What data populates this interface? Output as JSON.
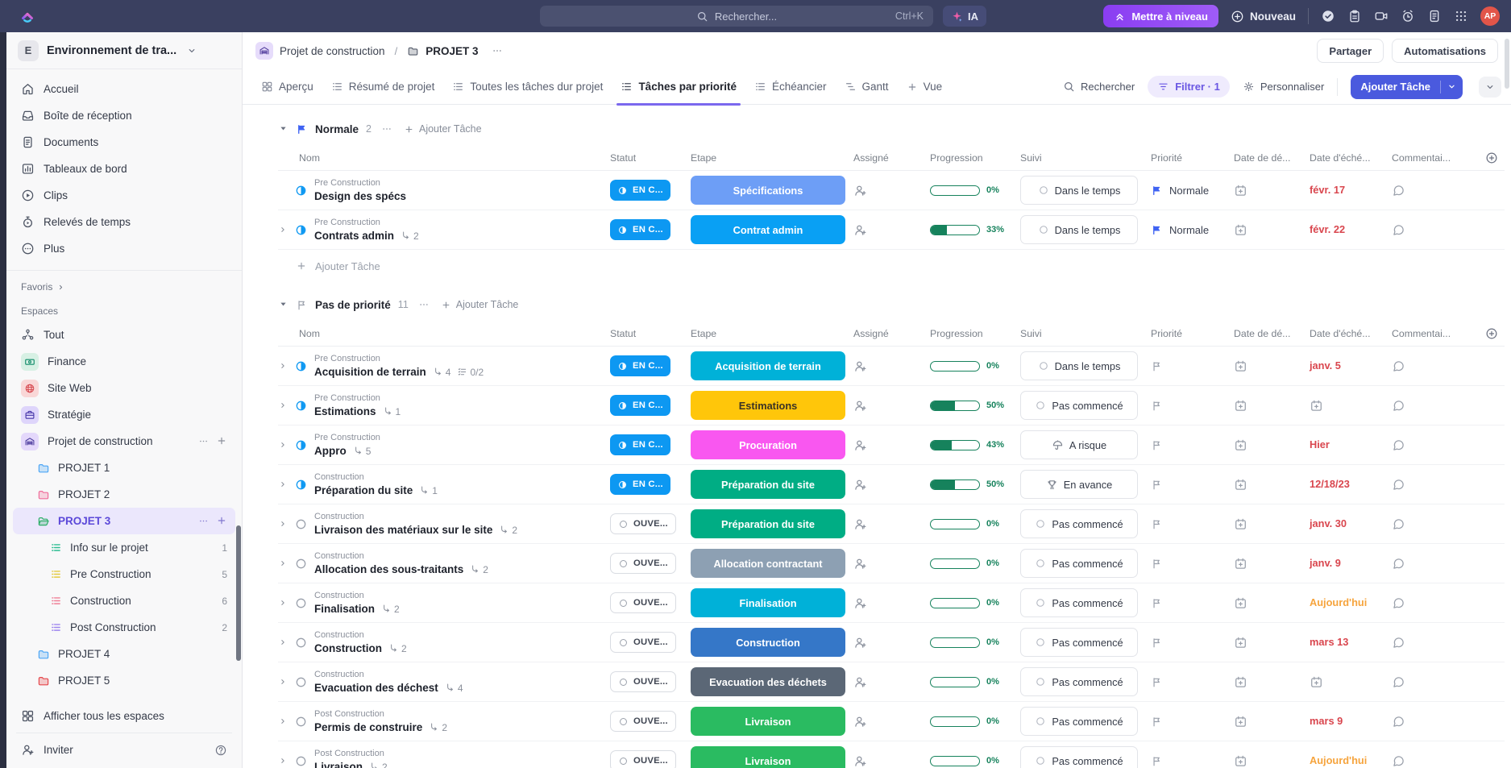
{
  "topbar": {
    "search_placeholder": "Rechercher...",
    "search_shortcut": "Ctrl+K",
    "ai_label": "IA",
    "upgrade_label": "Mettre à niveau",
    "new_label": "Nouveau",
    "avatar_initials": "AP",
    "icons": [
      "tasks-check",
      "clipboard",
      "screen-recorder",
      "reminder-clock",
      "notes",
      "apps-grid"
    ]
  },
  "sidebar": {
    "workspace": {
      "initial": "E",
      "name": "Environnement de tra..."
    },
    "nav": [
      {
        "key": "accueil",
        "label": "Accueil",
        "icon": "home"
      },
      {
        "key": "boite-de-reception",
        "label": "Boîte de réception",
        "icon": "inbox"
      },
      {
        "key": "documents",
        "label": "Documents",
        "icon": "docfile"
      },
      {
        "key": "tableaux-de-bord",
        "label": "Tableaux de bord",
        "icon": "chart"
      },
      {
        "key": "clips",
        "label": "Clips",
        "icon": "play"
      },
      {
        "key": "releves-de-temps",
        "label": "Relevés de temps",
        "icon": "timer"
      },
      {
        "key": "plus",
        "label": "Plus",
        "icon": "more"
      }
    ],
    "favoris_label": "Favoris",
    "espaces_label": "Espaces",
    "spaces": [
      {
        "key": "tout",
        "label": "Tout",
        "icon": "net",
        "badge": false,
        "color": "#555c6b"
      },
      {
        "key": "finance",
        "label": "Finance",
        "icon": "cash",
        "badge": true,
        "tint": "#d7f0e4",
        "color": "#0f8a68"
      },
      {
        "key": "site-web",
        "label": "Site Web",
        "icon": "globe",
        "badge": true,
        "tint": "#f9d7d7",
        "color": "#d6484f"
      },
      {
        "key": "strategie",
        "label": "Stratégie",
        "icon": "case",
        "badge": true,
        "tint": "#ded5fb",
        "color": "#4636a8"
      },
      {
        "key": "projet-de-construction",
        "label": "Projet de construction",
        "icon": "garage",
        "badge": true,
        "tint": "#e4d8fb",
        "color": "#4d3d9e",
        "actions": true
      }
    ],
    "projects": [
      {
        "key": "projet-1",
        "label": "PROJET 1",
        "color": "#4da6f5",
        "open": false,
        "active": false
      },
      {
        "key": "projet-2",
        "label": "PROJET 2",
        "color": "#ef6e9b",
        "open": false,
        "active": false
      },
      {
        "key": "projet-3",
        "label": "PROJET 3",
        "color": "#2bae66",
        "open": true,
        "active": true,
        "children": [
          {
            "key": "info-sur-le-projet",
            "label": "Info sur le projet",
            "count": "1",
            "color": "#2dbd92"
          },
          {
            "key": "pre-construction",
            "label": "Pre Construction",
            "count": "5",
            "color": "#e3c93e"
          },
          {
            "key": "construction",
            "label": "Construction",
            "count": "6",
            "color": "#ef7e96"
          },
          {
            "key": "post-construction",
            "label": "Post Construction",
            "count": "2",
            "color": "#9d85ef"
          }
        ]
      },
      {
        "key": "projet-4",
        "label": "PROJET 4",
        "color": "#4da6f5",
        "open": false,
        "active": false
      },
      {
        "key": "projet-5",
        "label": "PROJET 5",
        "color": "#e5484d",
        "open": false,
        "active": false
      }
    ],
    "footer": {
      "show_all": "Afficher tous les espaces",
      "invite": "Inviter"
    }
  },
  "header": {
    "breadcrumb": {
      "space": "Projet de construction",
      "separator": "/",
      "list": "PROJET 3"
    },
    "share_label": "Partager",
    "automations_label": "Automatisations"
  },
  "tabs": {
    "items": [
      {
        "label": "Aperçu",
        "icon": "grid4",
        "active": false
      },
      {
        "label": "Résumé de projet",
        "icon": "listtab",
        "active": false
      },
      {
        "label": "Toutes les tâches dur projet",
        "icon": "listtab",
        "active": false
      },
      {
        "label": "Tâches par priorité",
        "icon": "listtab",
        "active": true
      },
      {
        "label": "Échéancier",
        "icon": "listtab",
        "active": false
      },
      {
        "label": "Gantt",
        "icon": "gantt",
        "active": false
      }
    ],
    "add_view_label": "Vue"
  },
  "toolbar": {
    "search_label": "Rechercher",
    "filter_label": "Filtrer · 1",
    "customize_label": "Personnaliser",
    "add_task_label": "Ajouter Tâche"
  },
  "table": {
    "columns": [
      "Nom",
      "Statut",
      "Etape",
      "Assigné",
      "Progression",
      "Suivi",
      "Priorité",
      "Date de dé...",
      "Date d'éché...",
      "Commentai..."
    ],
    "add_task_label": "Ajouter Tâche",
    "groups": [
      {
        "name": "Normale",
        "count": "2",
        "flag": "normale",
        "flag_color": "#3f63f3",
        "show_add_row": true,
        "rows": [
          {
            "category": "Pre Construction",
            "name": "Design des spécs",
            "expand": false,
            "status": {
              "label": "EN C...",
              "kind": "encours"
            },
            "stage": {
              "label": "Spécifications",
              "bg": "#6d9ef6",
              "fg": "#ffffff"
            },
            "progress": {
              "pct": 0,
              "label": "0%"
            },
            "suivi": {
              "label": "Dans le temps",
              "icon": "circle"
            },
            "priority": {
              "label": "Normale",
              "kind": "normale"
            },
            "due": {
              "text": "févr. 17",
              "tone": "red"
            }
          },
          {
            "category": "Pre Construction",
            "name": "Contrats admin",
            "subtasks": "2",
            "expand": true,
            "status": {
              "label": "EN C...",
              "kind": "encours"
            },
            "stage": {
              "label": "Contrat admin",
              "bg": "#09a0f4",
              "fg": "#ffffff"
            },
            "progress": {
              "pct": 33,
              "label": "33%"
            },
            "suivi": {
              "label": "Dans le temps",
              "icon": "circle"
            },
            "priority": {
              "label": "Normale",
              "kind": "normale"
            },
            "due": {
              "text": "févr. 22",
              "tone": "red"
            }
          }
        ]
      },
      {
        "name": "Pas de priorité",
        "count": "11",
        "flag": "none",
        "flag_color": "#9aa0ab",
        "show_add_row": false,
        "rows": [
          {
            "category": "Pre Construction",
            "name": "Acquisition de terrain",
            "subtasks": "4",
            "checklist": "0/2",
            "expand": true,
            "status": {
              "label": "EN C...",
              "kind": "encours"
            },
            "stage": {
              "label": "Acquisition de terrain",
              "bg": "#00b1d8",
              "fg": "#ffffff"
            },
            "progress": {
              "pct": 0,
              "label": "0%"
            },
            "suivi": {
              "label": "Dans le temps",
              "icon": "circle"
            },
            "priority": {
              "kind": "none"
            },
            "due": {
              "text": "janv. 5",
              "tone": "red"
            }
          },
          {
            "category": "Pre Construction",
            "name": "Estimations",
            "subtasks": "1",
            "expand": true,
            "status": {
              "label": "EN C...",
              "kind": "encours"
            },
            "stage": {
              "label": "Estimations",
              "bg": "#ffc60a",
              "fg": "#3a3325"
            },
            "progress": {
              "pct": 50,
              "label": "50%"
            },
            "suivi": {
              "label": "Pas commencé",
              "icon": "circle"
            },
            "priority": {
              "kind": "none"
            },
            "due": {
              "icon": true
            }
          },
          {
            "category": "Pre Construction",
            "name": "Appro",
            "subtasks": "5",
            "expand": true,
            "status": {
              "label": "EN C...",
              "kind": "encours"
            },
            "stage": {
              "label": "Procuration",
              "bg": "#f957f0",
              "fg": "#ffffff"
            },
            "progress": {
              "pct": 43,
              "label": "43%"
            },
            "suivi": {
              "label": "A risque",
              "icon": "umbrella"
            },
            "priority": {
              "kind": "none"
            },
            "due": {
              "text": "Hier",
              "tone": "red"
            }
          },
          {
            "category": "Construction",
            "name": "Préparation du site",
            "subtasks": "1",
            "expand": true,
            "status": {
              "label": "EN C...",
              "kind": "encours"
            },
            "stage": {
              "label": "Préparation du site",
              "bg": "#00ad84",
              "fg": "#ffffff"
            },
            "progress": {
              "pct": 50,
              "label": "50%"
            },
            "suivi": {
              "label": "En avance",
              "icon": "trophy"
            },
            "priority": {
              "kind": "none"
            },
            "due": {
              "text": "12/18/23",
              "tone": "red"
            }
          },
          {
            "category": "Construction",
            "name": "Livraison des matériaux sur le site",
            "subtasks": "2",
            "expand": true,
            "status": {
              "label": "OUVE...",
              "kind": "ouvert"
            },
            "stage": {
              "label": "Préparation du site",
              "bg": "#00ad84",
              "fg": "#ffffff"
            },
            "progress": {
              "pct": 0,
              "label": "0%"
            },
            "suivi": {
              "label": "Pas commencé",
              "icon": "circle"
            },
            "priority": {
              "kind": "none"
            },
            "due": {
              "text": "janv. 30",
              "tone": "red"
            }
          },
          {
            "category": "Construction",
            "name": "Allocation des sous-traitants",
            "subtasks": "2",
            "expand": true,
            "status": {
              "label": "OUVE...",
              "kind": "ouvert"
            },
            "stage": {
              "label": "Allocation contractant",
              "bg": "#8da0b3",
              "fg": "#ffffff"
            },
            "progress": {
              "pct": 0,
              "label": "0%"
            },
            "suivi": {
              "label": "Pas commencé",
              "icon": "circle"
            },
            "priority": {
              "kind": "none"
            },
            "due": {
              "text": "janv. 9",
              "tone": "red"
            }
          },
          {
            "category": "Construction",
            "name": "Finalisation",
            "subtasks": "2",
            "expand": true,
            "status": {
              "label": "OUVE...",
              "kind": "ouvert"
            },
            "stage": {
              "label": "Finalisation",
              "bg": "#00b1d8",
              "fg": "#ffffff"
            },
            "progress": {
              "pct": 0,
              "label": "0%"
            },
            "suivi": {
              "label": "Pas commencé",
              "icon": "circle"
            },
            "priority": {
              "kind": "none"
            },
            "due": {
              "text": "Aujourd'hui",
              "tone": "orange"
            }
          },
          {
            "category": "Construction",
            "name": "Construction",
            "subtasks": "2",
            "expand": true,
            "status": {
              "label": "OUVE...",
              "kind": "ouvert"
            },
            "stage": {
              "label": "Construction",
              "bg": "#3577c8",
              "fg": "#ffffff"
            },
            "progress": {
              "pct": 0,
              "label": "0%"
            },
            "suivi": {
              "label": "Pas commencé",
              "icon": "circle"
            },
            "priority": {
              "kind": "none"
            },
            "due": {
              "text": "mars 13",
              "tone": "red"
            }
          },
          {
            "category": "Construction",
            "name": "Evacuation des déchest",
            "subtasks": "4",
            "expand": true,
            "status": {
              "label": "OUVE...",
              "kind": "ouvert"
            },
            "stage": {
              "label": "Evacuation des déchets",
              "bg": "#5b6776",
              "fg": "#ffffff"
            },
            "progress": {
              "pct": 0,
              "label": "0%"
            },
            "suivi": {
              "label": "Pas commencé",
              "icon": "circle"
            },
            "priority": {
              "kind": "none"
            },
            "due": {
              "icon": true
            }
          },
          {
            "category": "Post Construction",
            "name": "Permis de construire",
            "subtasks": "2",
            "expand": true,
            "status": {
              "label": "OUVE...",
              "kind": "ouvert"
            },
            "stage": {
              "label": "Livraison",
              "bg": "#2abb61",
              "fg": "#ffffff"
            },
            "progress": {
              "pct": 0,
              "label": "0%"
            },
            "suivi": {
              "label": "Pas commencé",
              "icon": "circle"
            },
            "priority": {
              "kind": "none"
            },
            "due": {
              "text": "mars 9",
              "tone": "red"
            }
          },
          {
            "category": "Post Construction",
            "name": "Livraison",
            "subtasks": "2",
            "expand": true,
            "status": {
              "label": "OUVE...",
              "kind": "ouvert"
            },
            "stage": {
              "label": "Livraison",
              "bg": "#2abb61",
              "fg": "#ffffff"
            },
            "progress": {
              "pct": 0,
              "label": "0%"
            },
            "suivi": {
              "label": "Pas commencé",
              "icon": "circle"
            },
            "priority": {
              "kind": "none"
            },
            "due": {
              "text": "Aujourd'hui",
              "tone": "orange"
            }
          }
        ]
      }
    ]
  },
  "colors": {
    "accent": "#7b68ee",
    "topbar_bg": "#3a4060",
    "add_task_button": "#4a5ade",
    "overdue_red": "#d9464e",
    "today_orange": "#f6a43d",
    "progress_green": "#16825c",
    "status_en_cours": "#0d98f2",
    "priority_normale": "#3f63f3"
  }
}
